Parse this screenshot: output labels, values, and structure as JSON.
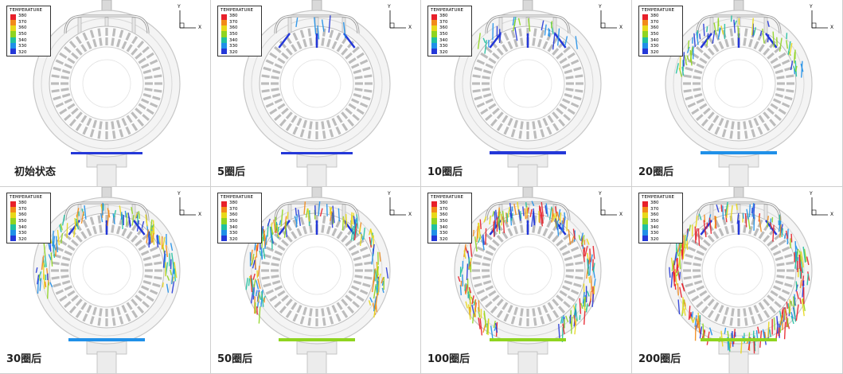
{
  "legend": {
    "title": "TEMPERATURE",
    "labels": [
      "380",
      "370",
      "360",
      "350",
      "340",
      "330",
      "320"
    ],
    "colors": [
      "#e8202a",
      "#f28a18",
      "#e8d818",
      "#8fd420",
      "#20c0a0",
      "#2090e8",
      "#2438d8"
    ]
  },
  "axes": {
    "y": "Y",
    "x": "X"
  },
  "panels": [
    {
      "caption": "初始状态"
    },
    {
      "caption": "5圈后"
    },
    {
      "caption": "10圈后"
    },
    {
      "caption": "20圈后"
    },
    {
      "caption": "30圈后"
    },
    {
      "caption": "50圈后"
    },
    {
      "caption": "100圈后"
    },
    {
      "caption": "200圈后"
    }
  ]
}
